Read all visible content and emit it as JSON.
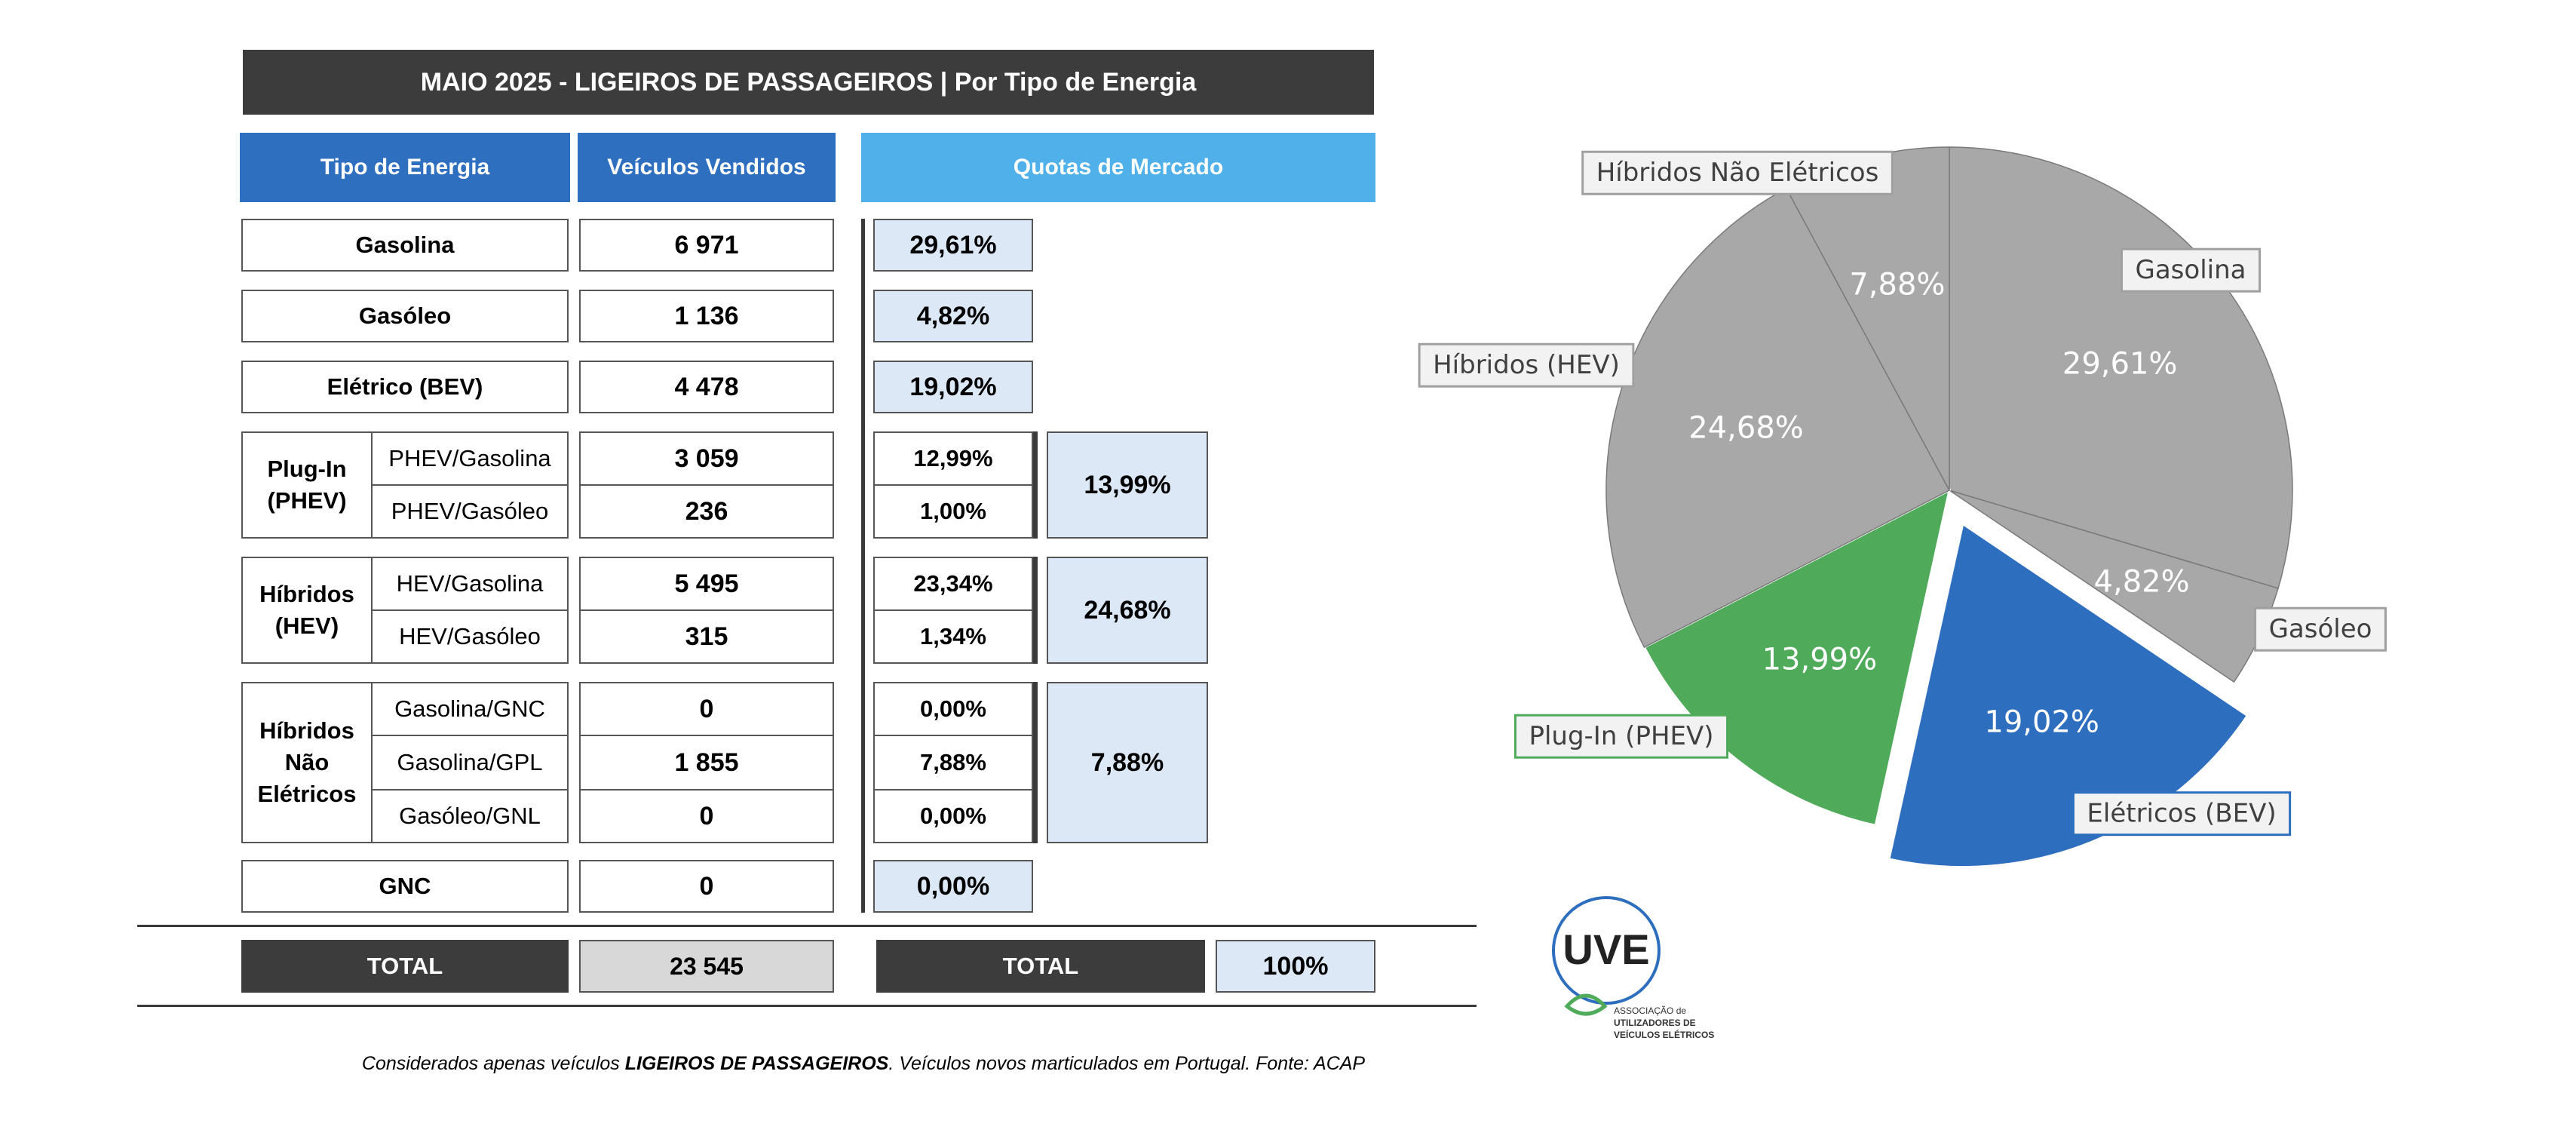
{
  "title": "MAIO 2025 - LIGEIROS DE PASSAGEIROS | Por Tipo de Energia",
  "headers": {
    "energy_type": "Tipo de Energia",
    "vehicles_sold": "Veículos Vendidos",
    "market_share": "Quotas de Mercado"
  },
  "rows": {
    "gasolina": {
      "label": "Gasolina",
      "value": "6 971",
      "share": "29,61%"
    },
    "gasoleo": {
      "label": "Gasóleo",
      "value": "1 136",
      "share": "4,82%"
    },
    "eletrico": {
      "label": "Elétrico (BEV)",
      "value": "4 478",
      "share": "19,02%"
    },
    "phev": {
      "label_line1": "Plug-In",
      "label_line2": "(PHEV)",
      "total_share": "13,99%",
      "sub": [
        {
          "label": "PHEV/Gasolina",
          "value": "3 059",
          "share": "12,99%"
        },
        {
          "label": "PHEV/Gasóleo",
          "value": "236",
          "share": "1,00%"
        }
      ]
    },
    "hev": {
      "label_line1": "Híbridos",
      "label_line2": "(HEV)",
      "total_share": "24,68%",
      "sub": [
        {
          "label": "HEV/Gasolina",
          "value": "5 495",
          "share": "23,34%"
        },
        {
          "label": "HEV/Gasóleo",
          "value": "315",
          "share": "1,34%"
        }
      ]
    },
    "hne": {
      "label_line1": "Híbridos",
      "label_line2": "Não",
      "label_line3": "Elétricos",
      "total_share": "7,88%",
      "sub": [
        {
          "label": "Gasolina/GNC",
          "value": "0",
          "share": "0,00%"
        },
        {
          "label": "Gasolina/GPL",
          "value": "1 855",
          "share": "7,88%"
        },
        {
          "label": "Gasóleo/GNL",
          "value": "0",
          "share": "0,00%"
        }
      ]
    },
    "gnc": {
      "label": "GNC",
      "value": "0",
      "share": "0,00%"
    }
  },
  "total": {
    "label": "TOTAL",
    "value": "23 545",
    "share_label": "TOTAL",
    "share": "100%"
  },
  "footnote": {
    "part1": "Considerados apenas veículos ",
    "bold": "LIGEIROS DE PASSAGEIROS",
    "part2": ". Veículos novos marticulados em Portugal. Fonte: ACAP"
  },
  "logo": {
    "mark": "UVE",
    "line1": "ASSOCIAÇÃO de",
    "line2": "UTILIZADORES DE",
    "line3": "VEÍCULOS ELÉTRICOS"
  },
  "chart_data": {
    "type": "pie",
    "start_angle_deg": 0,
    "direction": "clockwise",
    "exploded": "Elétricos (BEV)",
    "slices": [
      {
        "name": "Gasolina",
        "value": 29.61,
        "label": "29,61%",
        "color": "#a8a8a8"
      },
      {
        "name": "Gasóleo",
        "value": 4.82,
        "label": "4,82%",
        "color": "#a8a8a8"
      },
      {
        "name": "Elétricos (BEV)",
        "value": 19.02,
        "label": "19,02%",
        "color": "#2e6ebe"
      },
      {
        "name": "Plug-In (PHEV)",
        "value": 13.99,
        "label": "13,99%",
        "color": "#4fab5a"
      },
      {
        "name": "Híbridos (HEV)",
        "value": 24.68,
        "label": "24,68%",
        "color": "#a8a8a8"
      },
      {
        "name": "Híbridos Não Elétricos",
        "value": 7.88,
        "label": "7,88%",
        "color": "#a8a8a8"
      }
    ]
  }
}
